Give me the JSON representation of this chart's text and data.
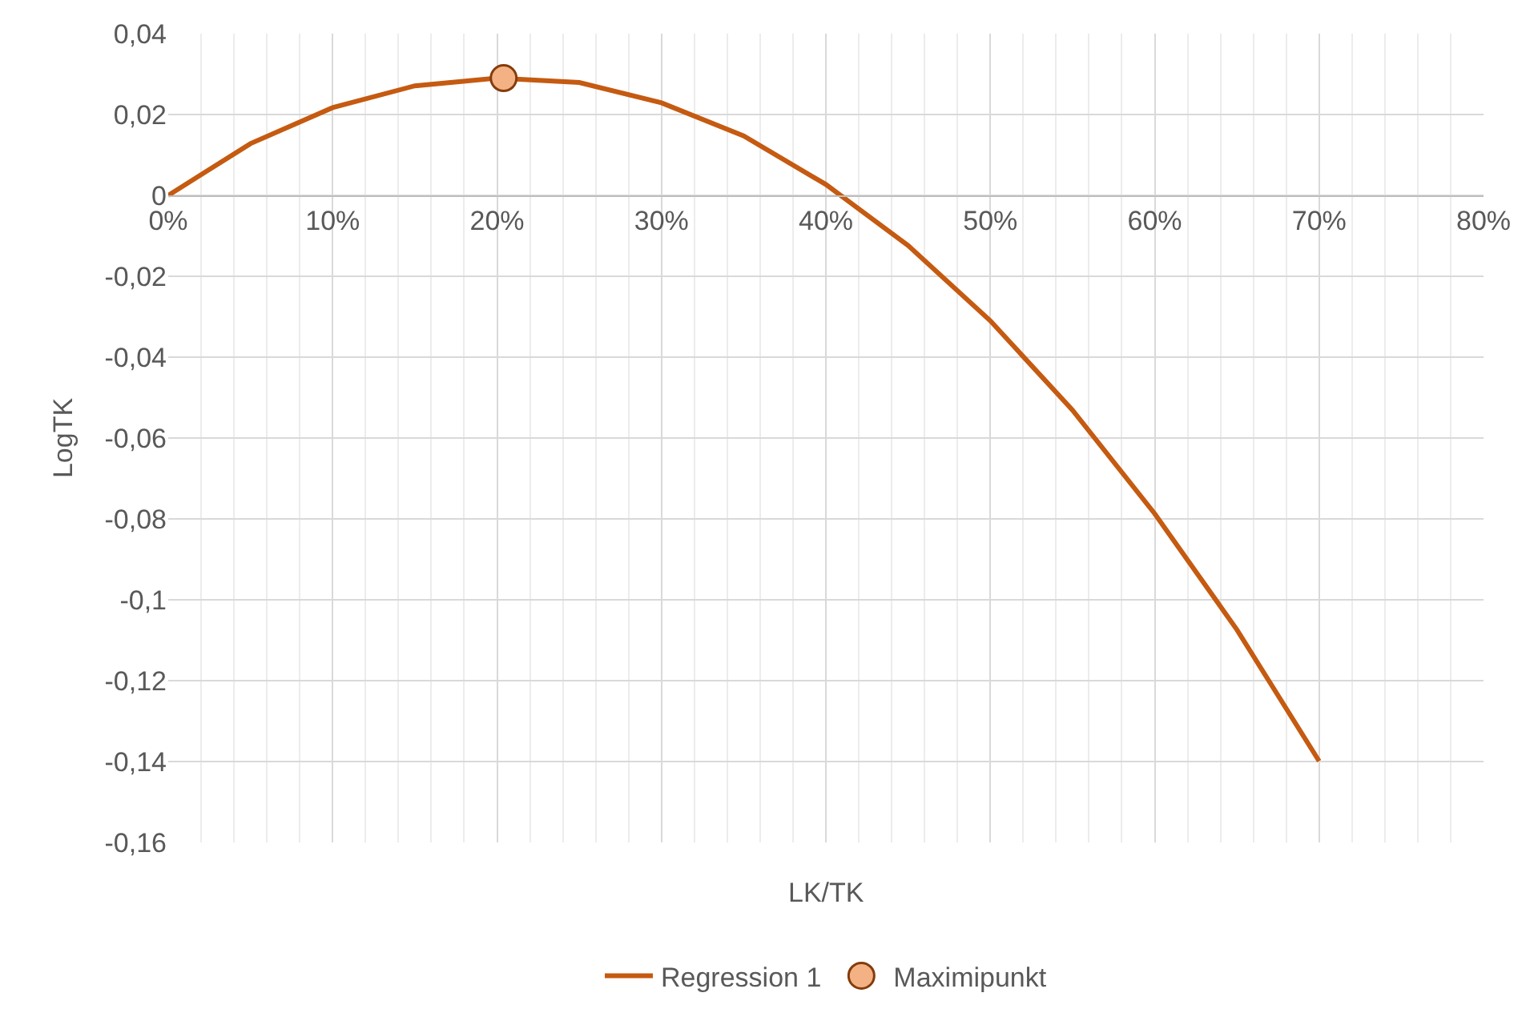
{
  "chart_data": {
    "type": "line",
    "xlabel": "LK/TK",
    "ylabel": "LogTK",
    "xlim": [
      0,
      0.8
    ],
    "xticks": [
      {
        "value": 0,
        "label": "0%"
      },
      {
        "value": 0.1,
        "label": "10%"
      },
      {
        "value": 0.2,
        "label": "20%"
      },
      {
        "value": 0.3,
        "label": "30%"
      },
      {
        "value": 0.4,
        "label": "40%"
      },
      {
        "value": 0.5,
        "label": "50%"
      },
      {
        "value": 0.6,
        "label": "60%"
      },
      {
        "value": 0.7,
        "label": "70%"
      },
      {
        "value": 0.8,
        "label": "80%"
      }
    ],
    "ylim": [
      -0.16,
      0.04
    ],
    "yticks": [
      {
        "value": -0.16,
        "label": "-0,16"
      },
      {
        "value": -0.14,
        "label": "-0,14"
      },
      {
        "value": -0.12,
        "label": "-0,12"
      },
      {
        "value": -0.1,
        "label": "-0,1"
      },
      {
        "value": -0.08,
        "label": "-0,08"
      },
      {
        "value": -0.06,
        "label": "-0,06"
      },
      {
        "value": -0.04,
        "label": "-0,04"
      },
      {
        "value": -0.02,
        "label": "-0,02"
      },
      {
        "value": 0,
        "label": "0"
      },
      {
        "value": 0.02,
        "label": "0,02"
      },
      {
        "value": 0.04,
        "label": "0,04"
      }
    ],
    "grid": true,
    "legend": "bottom",
    "series": [
      {
        "name": "Regression 1",
        "color": "#c55a11",
        "marker": "none",
        "x": [
          0,
          0.05,
          0.1,
          0.15,
          0.2,
          0.25,
          0.3,
          0.35,
          0.4,
          0.45,
          0.5,
          0.55,
          0.6,
          0.65,
          0.7
        ],
        "values": [
          0,
          0.0128,
          0.0217,
          0.0271,
          0.029,
          0.0279,
          0.0229,
          0.0147,
          0.0027,
          -0.0124,
          -0.031,
          -0.0531,
          -0.0787,
          -0.1074,
          -0.1399
        ]
      },
      {
        "name": "Maximipunkt",
        "type": "scatter",
        "color": "#f4b183",
        "marker": "circle",
        "x": [
          0.204
        ],
        "values": [
          0.029
        ]
      }
    ]
  }
}
